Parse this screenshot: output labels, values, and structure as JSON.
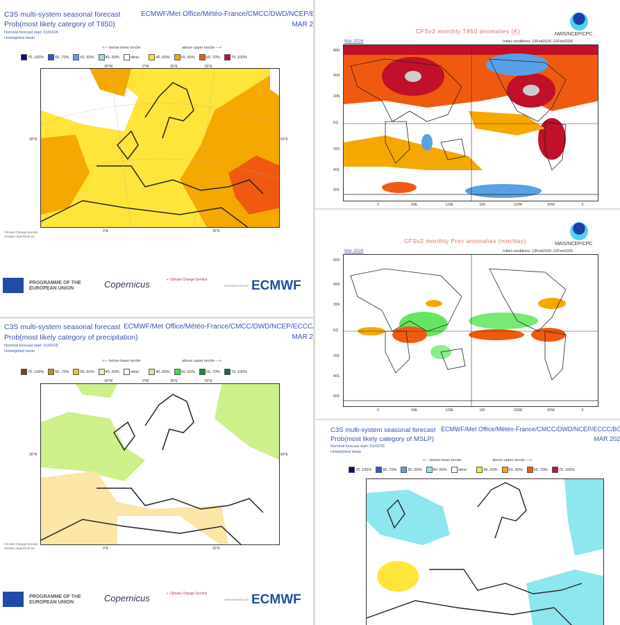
{
  "c3s_common": {
    "line1": "C3S multi-system seasonal forecast",
    "centres_a": "ECMWF/Met Office/Météo-France/CMCC/DWD/NCEP/ECC",
    "centres_b": "ECMWF/Met Office/Météo-France/CMCC/DWD/NCEP/ECCC/E",
    "centres_c": "ECMWF/Met Office/Météo-France/CMCC/DWD/NCEP/ECCC/BO",
    "month": "MAR 2",
    "month_c": "MAR 202",
    "nominal": "Nominal forecast start: 01/02/26",
    "mean": "Unweighted mean",
    "below": "<--- below lower tercile",
    "above": "above upper tercile --->",
    "ccs_note": "Climate Change Service",
    "ccs_url": "climate.copernicus.eu",
    "lon_ticks_top": [
      "30°W",
      "0°W",
      "30°E",
      "60°E"
    ],
    "lon_ticks_bottom": [
      "0°E",
      "30°E"
    ],
    "lat_tick": "30°N",
    "lat_tick_right": "60°E"
  },
  "t850": {
    "title": "Prob(most likely category of T850)",
    "legend": [
      {
        "label": "70..100%",
        "color": "#0a0a7a"
      },
      {
        "label": "60..70%",
        "color": "#2a5ad8"
      },
      {
        "label": "50..60%",
        "color": "#5aa0e6"
      },
      {
        "label": "40..50%",
        "color": "#8ee6ee"
      },
      {
        "label": "other",
        "color": "#ffffff"
      },
      {
        "label": "40..50%",
        "color": "#ffe43a"
      },
      {
        "label": "50..60%",
        "color": "#f5a800"
      },
      {
        "label": "60..70%",
        "color": "#f05a10"
      },
      {
        "label": "70..100%",
        "color": "#c0102a"
      }
    ]
  },
  "precip": {
    "title": "Prob(most likely category of precipitation)",
    "legend": [
      {
        "label": "70..100%",
        "color": "#8a3a0a"
      },
      {
        "label": "60..70%",
        "color": "#c88a1a"
      },
      {
        "label": "50..60%",
        "color": "#f2c030"
      },
      {
        "label": "40..50%",
        "color": "#fbe6a8"
      },
      {
        "label": "other",
        "color": "#ffffff"
      },
      {
        "label": "40..50%",
        "color": "#cdf08a"
      },
      {
        "label": "50..60%",
        "color": "#3ee03a"
      },
      {
        "label": "60..70%",
        "color": "#1a8a3a"
      },
      {
        "label": "70..100%",
        "color": "#0a6a6a"
      }
    ]
  },
  "mslp": {
    "title": "Prob(most likely category of MSLP)",
    "legend": [
      {
        "label": "70..100%",
        "color": "#0a0a7a"
      },
      {
        "label": "60..70%",
        "color": "#2a5ad8"
      },
      {
        "label": "50..60%",
        "color": "#5aa0e6"
      },
      {
        "label": "40..50%",
        "color": "#8ee6ee"
      },
      {
        "label": "other",
        "color": "#ffffff"
      },
      {
        "label": "40..50%",
        "color": "#ffe43a"
      },
      {
        "label": "50..60%",
        "color": "#f5a800"
      },
      {
        "label": "60..70%",
        "color": "#f05a10"
      },
      {
        "label": "70..100%",
        "color": "#c0102a"
      }
    ]
  },
  "logos": {
    "eu": "PROGRAMME OF THE EUROPEAN UNION",
    "copernicus": "opernicus",
    "ccs": "Climate Change Service",
    "implemented_by": "IMPLEMENTED BY",
    "ecmwf": "ECMWF"
  },
  "cfs_t850": {
    "title": "CFSv2 monthly T850 anomalies (K)",
    "source": "NWS/NCEP/CPC",
    "date": "Mar 2026",
    "init": "Initial conditions: 13Feb2026–22Feb2026"
  },
  "cfs_prec": {
    "title": "CFSv2 monthly Prec anomalies (mm/day)",
    "source": "NWS/NCEP/CPC",
    "date": "Mar 2026",
    "init": "Initial conditions: 13Feb2026–22Feb2026"
  },
  "global_axes": {
    "lat": [
      "80N",
      "40N",
      "20N",
      "EQ",
      "20S",
      "40S",
      "60S"
    ],
    "lon": [
      "0",
      "60E",
      "120E",
      "180",
      "120W",
      "60W",
      "0"
    ]
  }
}
